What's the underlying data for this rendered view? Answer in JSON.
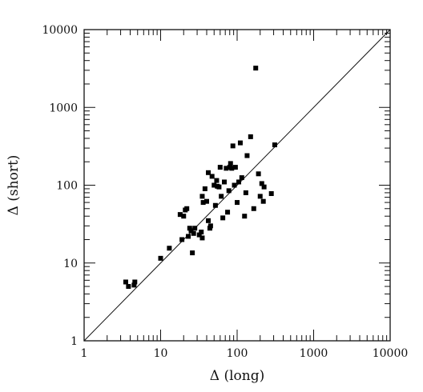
{
  "chart_data": {
    "type": "scatter",
    "xlabel": "Δ (long)",
    "ylabel": "Δ (short)",
    "xscale": "log",
    "yscale": "log",
    "xlim": [
      1,
      10000
    ],
    "ylim": [
      1,
      10000
    ],
    "grid": false,
    "frame": "box with inward ticks on all four sides",
    "reference_line": {
      "type": "identity",
      "from": [
        1,
        1
      ],
      "to": [
        10000,
        10000
      ]
    },
    "xticks": [
      "1",
      "10",
      "100",
      "1000",
      "10000"
    ],
    "yticks": [
      "1",
      "10",
      "100",
      "1000",
      "10000"
    ],
    "marker": "square",
    "marker_color": "#000000",
    "points": [
      {
        "x": 3.5,
        "y": 5.7
      },
      {
        "x": 3.8,
        "y": 5.0
      },
      {
        "x": 4.5,
        "y": 5.2
      },
      {
        "x": 4.6,
        "y": 5.7
      },
      {
        "x": 10,
        "y": 11.5
      },
      {
        "x": 13,
        "y": 15.5
      },
      {
        "x": 18,
        "y": 42
      },
      {
        "x": 19,
        "y": 20
      },
      {
        "x": 20,
        "y": 40
      },
      {
        "x": 21,
        "y": 48
      },
      {
        "x": 22,
        "y": 50
      },
      {
        "x": 23,
        "y": 22
      },
      {
        "x": 24,
        "y": 28
      },
      {
        "x": 25,
        "y": 26
      },
      {
        "x": 26,
        "y": 13.5
      },
      {
        "x": 27,
        "y": 24
      },
      {
        "x": 28,
        "y": 28
      },
      {
        "x": 32,
        "y": 23
      },
      {
        "x": 34,
        "y": 25
      },
      {
        "x": 35,
        "y": 21
      },
      {
        "x": 35,
        "y": 72
      },
      {
        "x": 36,
        "y": 60
      },
      {
        "x": 38,
        "y": 90
      },
      {
        "x": 40,
        "y": 62
      },
      {
        "x": 42,
        "y": 35
      },
      {
        "x": 42,
        "y": 145
      },
      {
        "x": 44,
        "y": 28
      },
      {
        "x": 45,
        "y": 30
      },
      {
        "x": 47,
        "y": 130
      },
      {
        "x": 50,
        "y": 100
      },
      {
        "x": 52,
        "y": 55
      },
      {
        "x": 54,
        "y": 115
      },
      {
        "x": 55,
        "y": 97
      },
      {
        "x": 58,
        "y": 95
      },
      {
        "x": 60,
        "y": 170
      },
      {
        "x": 62,
        "y": 72
      },
      {
        "x": 65,
        "y": 38
      },
      {
        "x": 68,
        "y": 110
      },
      {
        "x": 72,
        "y": 165
      },
      {
        "x": 75,
        "y": 45
      },
      {
        "x": 78,
        "y": 85
      },
      {
        "x": 80,
        "y": 170
      },
      {
        "x": 82,
        "y": 190
      },
      {
        "x": 85,
        "y": 165
      },
      {
        "x": 88,
        "y": 320
      },
      {
        "x": 92,
        "y": 100
      },
      {
        "x": 95,
        "y": 170
      },
      {
        "x": 100,
        "y": 60
      },
      {
        "x": 105,
        "y": 110
      },
      {
        "x": 110,
        "y": 350
      },
      {
        "x": 115,
        "y": 125
      },
      {
        "x": 125,
        "y": 40
      },
      {
        "x": 130,
        "y": 80
      },
      {
        "x": 135,
        "y": 240
      },
      {
        "x": 150,
        "y": 420
      },
      {
        "x": 165,
        "y": 50
      },
      {
        "x": 175,
        "y": 3200
      },
      {
        "x": 190,
        "y": 140
      },
      {
        "x": 200,
        "y": 72
      },
      {
        "x": 210,
        "y": 105
      },
      {
        "x": 220,
        "y": 62
      },
      {
        "x": 225,
        "y": 95
      },
      {
        "x": 280,
        "y": 78
      },
      {
        "x": 310,
        "y": 330
      }
    ]
  }
}
